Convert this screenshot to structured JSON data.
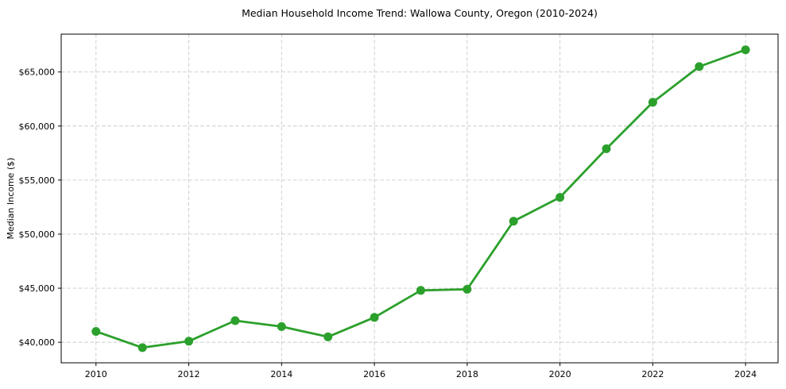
{
  "chart_data": {
    "type": "line",
    "title": "Median Household Income Trend: Wallowa County, Oregon (2010-2024)",
    "xlabel": "",
    "ylabel": "Median Income ($)",
    "x": [
      2010,
      2011,
      2012,
      2013,
      2014,
      2015,
      2016,
      2017,
      2018,
      2019,
      2020,
      2021,
      2022,
      2023,
      2024
    ],
    "series": [
      {
        "name": "Median Household Income",
        "values": [
          41000,
          39500,
          40100,
          42000,
          41450,
          40500,
          42300,
          44800,
          44900,
          51200,
          53400,
          57900,
          62200,
          65500,
          67050
        ],
        "color": "#2ca02c"
      }
    ],
    "x_ticks": [
      2010,
      2012,
      2014,
      2016,
      2018,
      2020,
      2022,
      2024
    ],
    "y_ticks": [
      40000,
      45000,
      50000,
      55000,
      60000,
      65000
    ],
    "y_tick_labels": [
      "$40,000",
      "$45,000",
      "$50,000",
      "$55,000",
      "$60,000",
      "$65,000"
    ],
    "xlim": [
      2009.25,
      2024.7
    ],
    "ylim": [
      38100,
      68500
    ],
    "grid": true,
    "grid_style": "dashed",
    "grid_color": "#c9c9c9",
    "legend_position": "none",
    "marker": "circle"
  }
}
